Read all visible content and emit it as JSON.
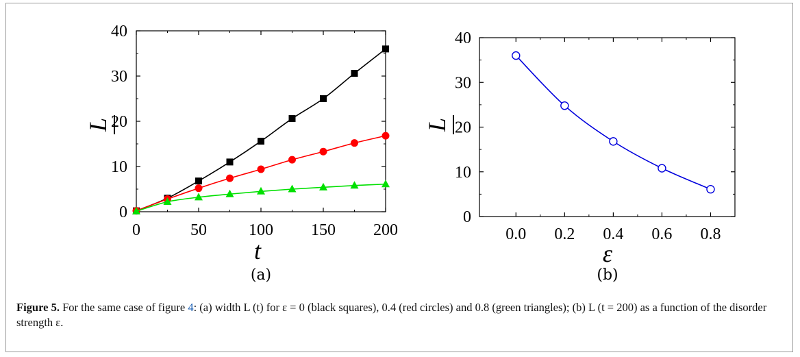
{
  "chart_data": [
    {
      "type": "line",
      "panel_label": "(a)",
      "xlabel": "t",
      "ylabel": "L",
      "xlim": [
        0,
        200
      ],
      "ylim": [
        0,
        40
      ],
      "x_ticks": [
        "0",
        "50",
        "100",
        "150",
        "200"
      ],
      "y_ticks": [
        "0",
        "10",
        "20",
        "30",
        "40"
      ],
      "series": [
        {
          "color": "#000000",
          "marker": "square",
          "x": [
            0,
            25,
            50,
            75,
            100,
            125,
            150,
            175,
            200
          ],
          "values": [
            0.2,
            3.0,
            6.8,
            11.0,
            15.6,
            20.6,
            25.0,
            30.6,
            36.0
          ]
        },
        {
          "color": "#ff0000",
          "marker": "circle",
          "x": [
            0,
            25,
            50,
            75,
            100,
            125,
            150,
            175,
            200
          ],
          "values": [
            0.2,
            2.8,
            5.2,
            7.4,
            9.4,
            11.5,
            13.3,
            15.2,
            16.8
          ]
        },
        {
          "color": "#00e000",
          "marker": "triangle",
          "x": [
            0,
            25,
            50,
            75,
            100,
            125,
            150,
            175,
            200
          ],
          "values": [
            0.1,
            2.2,
            3.2,
            3.9,
            4.5,
            5.0,
            5.4,
            5.8,
            6.1
          ]
        }
      ]
    },
    {
      "type": "line",
      "panel_label": "(b)",
      "xlabel": "ε",
      "ylabel": "L",
      "xlim": [
        -0.15,
        0.9
      ],
      "ylim": [
        0,
        40
      ],
      "x_ticks": [
        "0.0",
        "0.2",
        "0.4",
        "0.6",
        "0.8"
      ],
      "y_ticks": [
        "0",
        "10",
        "20",
        "30",
        "40"
      ],
      "series": [
        {
          "color": "#0000dd",
          "marker": "open-circle",
          "x": [
            0.0,
            0.2,
            0.4,
            0.6,
            0.8
          ],
          "values": [
            36.0,
            24.8,
            16.8,
            10.8,
            6.1
          ]
        }
      ]
    }
  ],
  "caption": {
    "label": "Figure 5.",
    "before_ref": " For the same case of figure ",
    "ref": "4",
    "after_ref": ": (a) width L (t) for ε = 0 (black squares), 0.4 (red circles) and 0.8 (green triangles); (b) L (t = 200) as a function of the disorder strength ε."
  }
}
